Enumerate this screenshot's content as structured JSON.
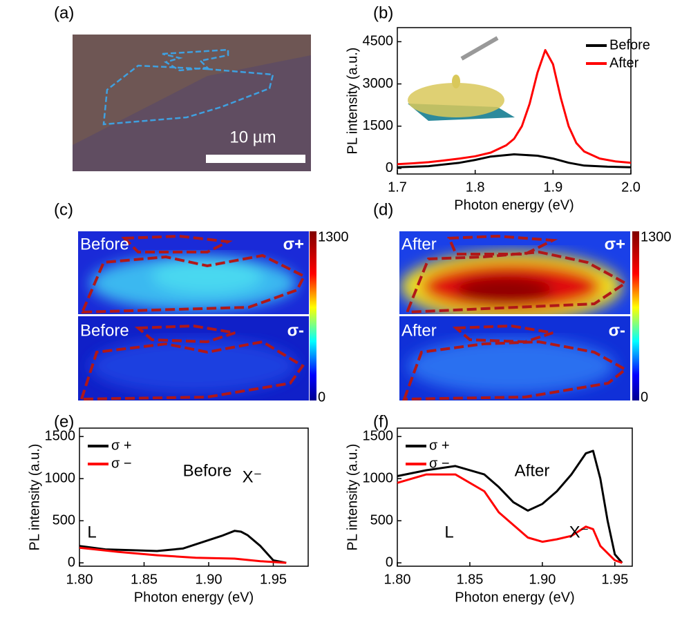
{
  "chart_data": [
    {
      "type": "line",
      "label": "(b)",
      "xlabel": "Photon energy (eV)",
      "ylabel": "PL intensity (a.u.)",
      "xlim": [
        1.7,
        2.0
      ],
      "xticks": [
        1.7,
        1.8,
        1.9,
        {
          "value": 2.0,
          "label": "2.0"
        }
      ],
      "ylim": [
        -200,
        5000
      ],
      "yticks": [
        0,
        1500,
        3000,
        4500
      ],
      "legend": "upper right",
      "series": [
        {
          "name": "Before",
          "color": "#000000",
          "x": [
            1.7,
            1.74,
            1.78,
            1.8,
            1.82,
            1.85,
            1.88,
            1.9,
            1.92,
            1.94,
            1.97,
            2.0
          ],
          "values": [
            40,
            80,
            200,
            300,
            420,
            500,
            450,
            350,
            200,
            100,
            60,
            40
          ]
        },
        {
          "name": "After",
          "color": "#ff0000",
          "x": [
            1.7,
            1.72,
            1.74,
            1.76,
            1.78,
            1.8,
            1.82,
            1.84,
            1.85,
            1.86,
            1.87,
            1.88,
            1.89,
            1.9,
            1.91,
            1.92,
            1.93,
            1.94,
            1.96,
            1.98,
            2.0
          ],
          "values": [
            150,
            180,
            220,
            280,
            350,
            430,
            560,
            820,
            1050,
            1500,
            2300,
            3400,
            4200,
            3700,
            2500,
            1500,
            900,
            600,
            350,
            250,
            200
          ]
        }
      ]
    },
    {
      "type": "line",
      "label": "(e)",
      "xlabel": "Photon energy (eV)",
      "ylabel": "PL intensity (a.u.)",
      "xlim": [
        1.8,
        1.977
      ],
      "xticks": [
        {
          "value": 1.8,
          "label": "1.80"
        },
        1.85,
        {
          "value": 1.9,
          "label": "1.90"
        },
        1.95
      ],
      "ylim": [
        -40,
        1600
      ],
      "yticks": [
        0,
        500,
        1000,
        1500
      ],
      "legend": "upper left",
      "annotations": [
        "L",
        "X⁻",
        "Before"
      ],
      "series": [
        {
          "name": "σ +",
          "color": "#000000",
          "x": [
            1.8,
            1.82,
            1.84,
            1.86,
            1.88,
            1.9,
            1.91,
            1.92,
            1.925,
            1.93,
            1.94,
            1.95,
            1.96
          ],
          "values": [
            200,
            160,
            150,
            140,
            170,
            270,
            320,
            380,
            370,
            330,
            200,
            30,
            0
          ]
        },
        {
          "name": "σ −",
          "color": "#ff0000",
          "x": [
            1.8,
            1.83,
            1.86,
            1.89,
            1.92,
            1.94,
            1.96
          ],
          "values": [
            180,
            130,
            90,
            60,
            50,
            20,
            0
          ]
        }
      ]
    },
    {
      "type": "line",
      "label": "(f)",
      "xlabel": "Photon energy (eV)",
      "ylabel": "PL intensity (a.u.)",
      "xlim": [
        1.8,
        1.962
      ],
      "xticks": [
        {
          "value": 1.8,
          "label": "1.80"
        },
        1.85,
        {
          "value": 1.9,
          "label": "1.90"
        },
        1.95
      ],
      "ylim": [
        -40,
        1600
      ],
      "yticks": [
        0,
        500,
        1000,
        1500
      ],
      "legend": "upper left",
      "annotations": [
        "After",
        "L",
        "X⁻"
      ],
      "series": [
        {
          "name": "σ +",
          "color": "#000000",
          "x": [
            1.8,
            1.82,
            1.84,
            1.86,
            1.87,
            1.88,
            1.89,
            1.9,
            1.91,
            1.92,
            1.93,
            1.935,
            1.94,
            1.945,
            1.95,
            1.955
          ],
          "values": [
            1030,
            1100,
            1150,
            1050,
            900,
            720,
            620,
            700,
            850,
            1050,
            1300,
            1330,
            1000,
            500,
            100,
            0
          ]
        },
        {
          "name": "σ −",
          "color": "#ff0000",
          "x": [
            1.8,
            1.82,
            1.84,
            1.86,
            1.87,
            1.88,
            1.89,
            1.9,
            1.91,
            1.92,
            1.93,
            1.935,
            1.94,
            1.95,
            1.955
          ],
          "values": [
            950,
            1050,
            1050,
            850,
            600,
            450,
            300,
            250,
            280,
            320,
            430,
            400,
            200,
            30,
            0
          ]
        }
      ]
    }
  ],
  "images": [
    {
      "label": "(a)",
      "scalebar": "10 µm"
    },
    {
      "label": "(c)",
      "colorbar_ticks": [
        0,
        1300
      ],
      "maps": [
        {
          "state": "Before",
          "polarization": "σ+"
        },
        {
          "state": "Before",
          "polarization": "σ-"
        }
      ]
    },
    {
      "label": "(d)",
      "colorbar_ticks": [
        0,
        1300
      ],
      "maps": [
        {
          "state": "After",
          "polarization": "σ+"
        },
        {
          "state": "After",
          "polarization": "σ-"
        }
      ]
    }
  ]
}
